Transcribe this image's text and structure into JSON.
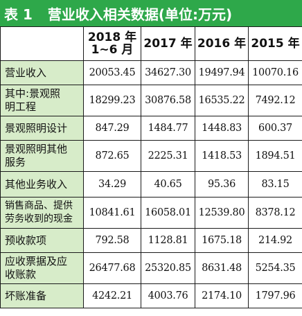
{
  "title": {
    "table_no": "表 1",
    "text": "营业收入相关数据(单位:万元)"
  },
  "header": {
    "col0": "",
    "col1": "2018 年\n1~6 月",
    "col2": "2017 年",
    "col3": "2016 年",
    "col4": "2015 年"
  },
  "rows": [
    {
      "label": "营业收入",
      "v1": "20053.45",
      "v2": "34627.30",
      "v3": "19497.94",
      "v4": "10070.16"
    },
    {
      "label": "其中:景观照\n明工程",
      "v1": "18299.23",
      "v2": "30876.58",
      "v3": "16535.22",
      "v4": "7492.12"
    },
    {
      "label": "景观照明设计",
      "v1": "847.29",
      "v2": "1484.77",
      "v3": "1448.83",
      "v4": "600.37"
    },
    {
      "label": "景观照明其他\n服务",
      "v1": "872.65",
      "v2": "2225.31",
      "v3": "1418.53",
      "v4": "1894.51"
    },
    {
      "label": "其他业务收入",
      "v1": "34.29",
      "v2": "40.65",
      "v3": "95.36",
      "v4": "83.15"
    },
    {
      "label": "销售商品、提供\n劳务收到的现金",
      "v1": "10841.61",
      "v2": "16058.01",
      "v3": "12539.80",
      "v4": "8378.12"
    },
    {
      "label": "预收款项",
      "v1": "792.58",
      "v2": "1128.81",
      "v3": "1675.18",
      "v4": "214.92"
    },
    {
      "label": "应收票据及应\n收账款",
      "v1": "26477.68",
      "v2": "25320.85",
      "v3": "8631.48",
      "v4": "5254.35"
    },
    {
      "label": "坏账准备",
      "v1": "4242.21",
      "v2": "4003.76",
      "v3": "2174.10",
      "v4": "1797.96"
    }
  ]
}
